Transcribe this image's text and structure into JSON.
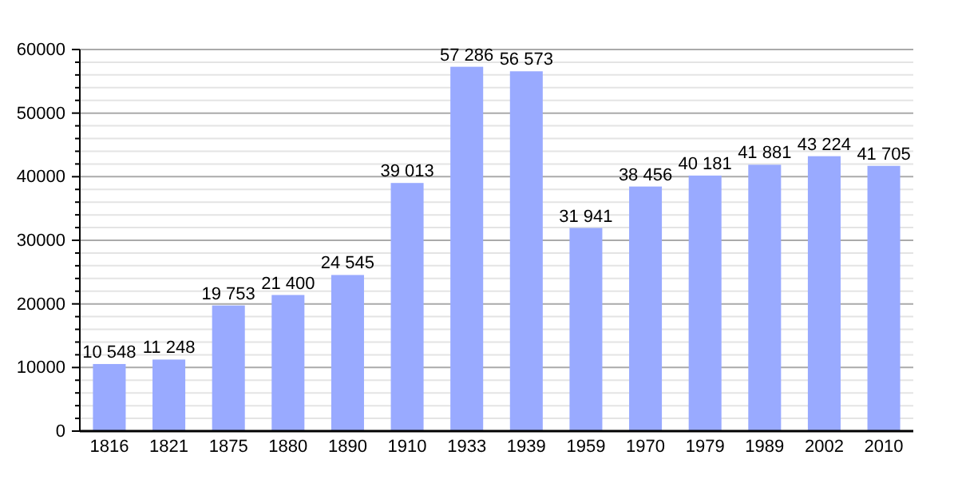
{
  "chart_data": {
    "type": "bar",
    "categories": [
      "1816",
      "1821",
      "1875",
      "1880",
      "1890",
      "1910",
      "1933",
      "1939",
      "1959",
      "1970",
      "1979",
      "1989",
      "2002",
      "2010"
    ],
    "values": [
      10548,
      11248,
      19753,
      21400,
      24545,
      39013,
      57286,
      56573,
      31941,
      38456,
      40181,
      41881,
      43224,
      41705
    ],
    "value_labels": [
      "10 548",
      "11 248",
      "19 753",
      "21 400",
      "24 545",
      "39 013",
      "57 286",
      "56 573",
      "31 941",
      "38 456",
      "40 181",
      "41 881",
      "43 224",
      "41 705"
    ],
    "color": "#99aaff",
    "ylim": [
      0,
      60000
    ],
    "yticks": [
      0,
      {
        "value": 2000,
        "label": null
      },
      {
        "value": 4000,
        "label": null
      },
      {
        "value": 6000,
        "label": null
      },
      {
        "value": 8000,
        "label": null
      },
      10000,
      {
        "value": 12000,
        "label": null
      },
      {
        "value": 14000,
        "label": null
      },
      {
        "value": 16000,
        "label": null
      },
      {
        "value": 18000,
        "label": null
      },
      20000,
      {
        "value": 22000,
        "label": null
      },
      {
        "value": 24000,
        "label": null
      },
      {
        "value": 26000,
        "label": null
      },
      {
        "value": 28000,
        "label": null
      },
      30000,
      {
        "value": 32000,
        "label": null
      },
      {
        "value": 34000,
        "label": null
      },
      {
        "value": 36000,
        "label": null
      },
      {
        "value": 38000,
        "label": null
      },
      40000,
      {
        "value": 42000,
        "label": null
      },
      {
        "value": 44000,
        "label": null
      },
      {
        "value": 46000,
        "label": null
      },
      {
        "value": 48000,
        "label": null
      },
      50000,
      {
        "value": 52000,
        "label": null
      },
      {
        "value": 54000,
        "label": null
      },
      {
        "value": 56000,
        "label": null
      },
      {
        "value": 58000,
        "label": null
      },
      60000
    ],
    "grid": true
  }
}
